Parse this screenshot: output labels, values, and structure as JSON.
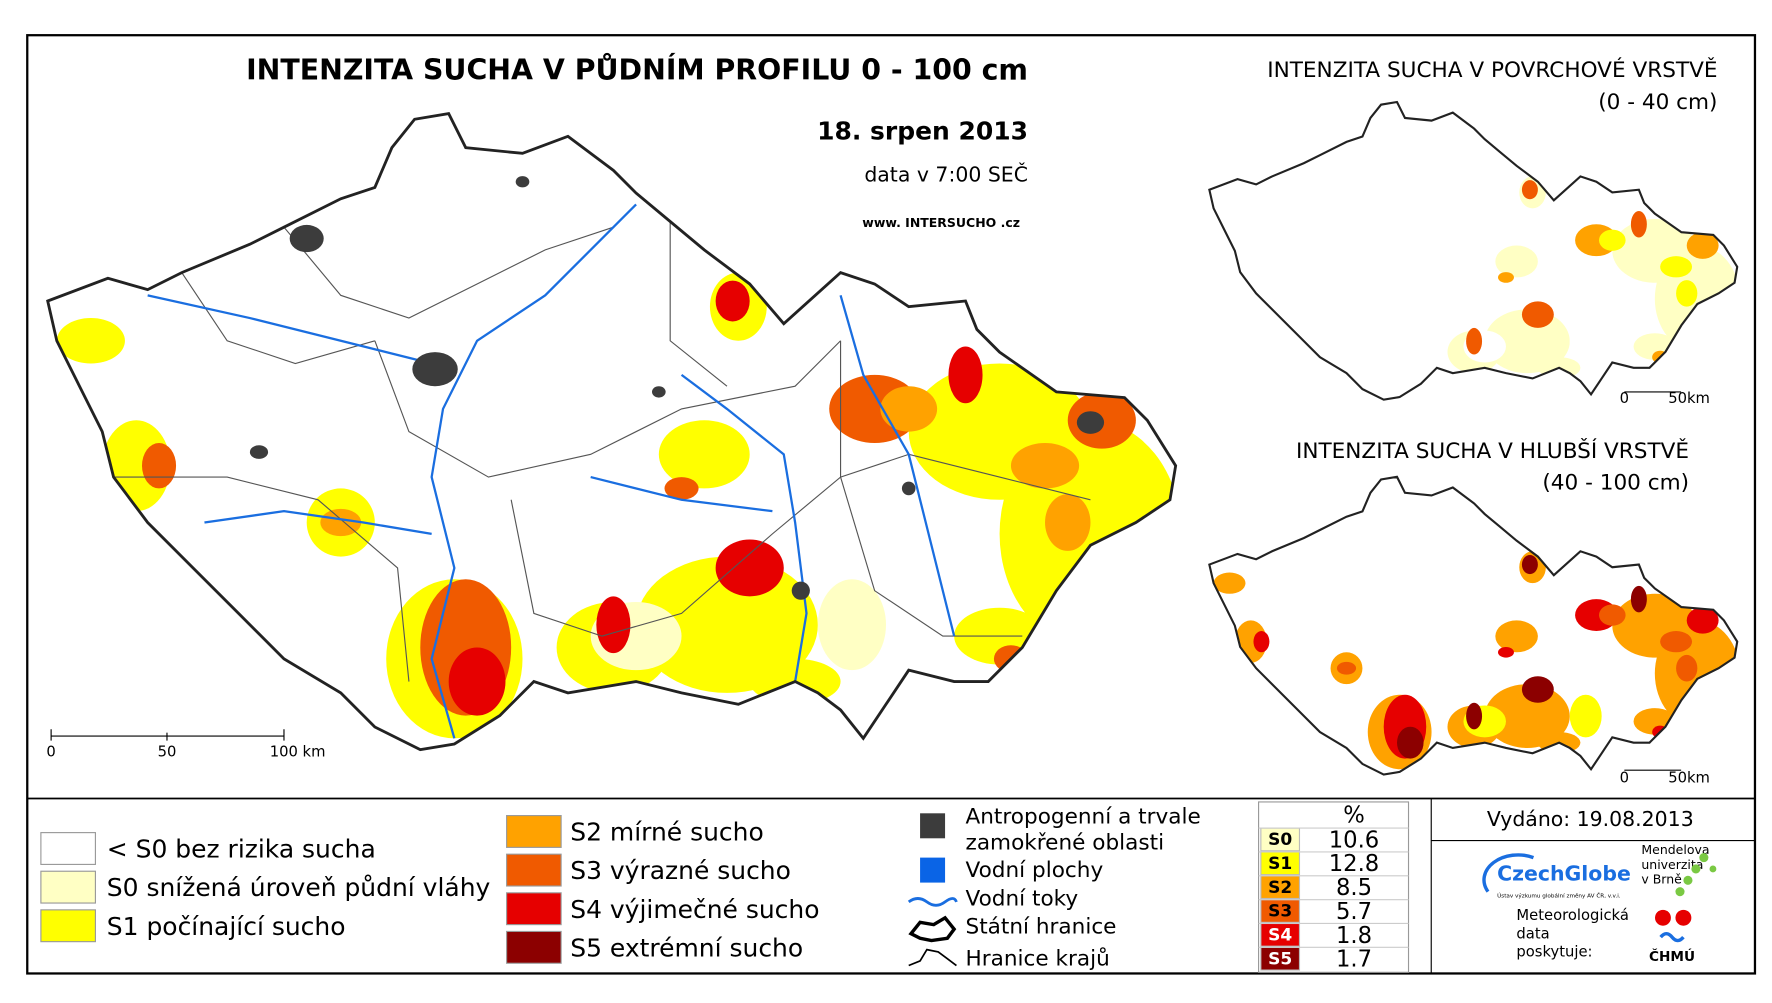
{
  "main_map": {
    "title": "INTENZITA SUCHA V PŮDNÍM PROFILU 0 - 100 cm",
    "date": "18. srpen 2013",
    "data_time": "data v 7:00 SEČ",
    "website": "www. INTERSUCHO .cz",
    "scale_labels": [
      "0",
      "50",
      "100 km"
    ]
  },
  "inset_top": {
    "title": "INTENZITA SUCHA V POVRCHOVÉ VRSTVĚ",
    "depth": "(0 - 40 cm)",
    "scale_labels": [
      "0",
      "50km"
    ]
  },
  "inset_bottom": {
    "title": "INTENZITA SUCHA V HLUBŠÍ VRSTVĚ",
    "depth": "(40 - 100 cm)",
    "scale_labels": [
      "0",
      "50km"
    ]
  },
  "legend": {
    "classes": [
      {
        "label": "< S0 bez rizika sucha",
        "color": "#ffffff"
      },
      {
        "label": "S0 snížená úroveň půdní vláhy",
        "color": "#ffffc4"
      },
      {
        "label": "S1 počínající sucho",
        "color": "#ffff00"
      },
      {
        "label": "S2 mírné sucho",
        "color": "#ffa200"
      },
      {
        "label": "S3 výrazné sucho",
        "color": "#f05a00"
      },
      {
        "label": "S4 výjimečné sucho",
        "color": "#e60000"
      },
      {
        "label": "S5 extrémní sucho",
        "color": "#8c0000"
      }
    ],
    "symbols": {
      "anthropogenic": [
        "Antropogenní a trvale",
        "zamokřené oblasti"
      ],
      "water_bodies": "Vodní plochy",
      "rivers": "Vodní toky",
      "state_border": "Státní hranice",
      "region_border": "Hranice krajů"
    }
  },
  "stats_table": {
    "percent_header": "%",
    "rows": [
      {
        "class": "S0",
        "percent": 10.6
      },
      {
        "class": "S1",
        "percent": 12.8
      },
      {
        "class": "S2",
        "percent": 8.5
      },
      {
        "class": "S3",
        "percent": 5.7
      },
      {
        "class": "S4",
        "percent": 1.8
      },
      {
        "class": "S5",
        "percent": 1.7
      }
    ]
  },
  "footer": {
    "issued": "Vydáno: 19.08.2013",
    "czechglobe": "CzechGlobe",
    "czechglobe_sub": "Ústav výzkumu globální změny AV ČR, v.v.i.",
    "mendel": [
      "Mendelova",
      "univerzita",
      "v Brně"
    ],
    "provider": [
      "Meteorologická",
      "data",
      "poskytuje:"
    ],
    "chmu": "ČHMÚ"
  }
}
